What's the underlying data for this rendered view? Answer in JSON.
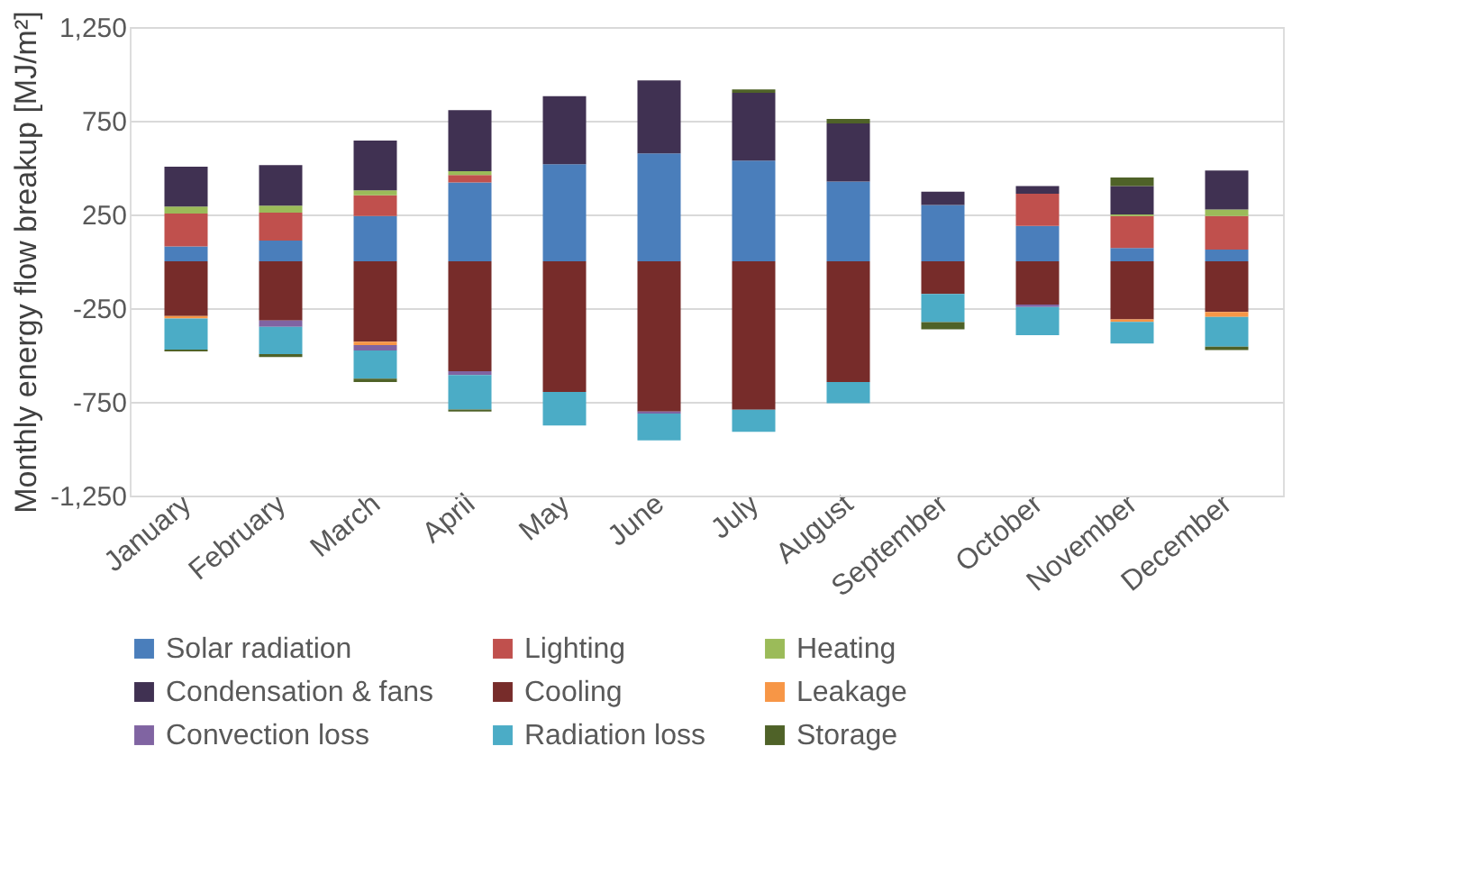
{
  "chart_data": {
    "type": "bar",
    "stacked": true,
    "ylabel": "Monthly energy flow breakup [MJ/m²]",
    "categories": [
      "January",
      "February",
      "March",
      "April",
      "May",
      "June",
      "July",
      "August",
      "September",
      "October",
      "November",
      "December"
    ],
    "series": [
      {
        "name": "Solar radiation",
        "color": "#4a7ebb",
        "values": [
          79,
          110,
          242,
          421,
          518,
          576,
          537,
          426,
          300,
          189,
          71,
          63
        ]
      },
      {
        "name": "Lighting",
        "color": "#c0504d",
        "values": [
          176,
          150,
          110,
          39,
          null,
          null,
          null,
          null,
          null,
          171,
          171,
          179
        ]
      },
      {
        "name": "Heating",
        "color": "#9bbb59",
        "values": [
          37,
          37,
          27,
          21,
          null,
          null,
          null,
          null,
          null,
          null,
          8,
          34
        ]
      },
      {
        "name": "Condensation & fans",
        "color": "#403152",
        "values": [
          213,
          216,
          265,
          326,
          363,
          389,
          362,
          310,
          71,
          42,
          152,
          208
        ]
      },
      {
        "name": "Cooling",
        "color": "#772c2a",
        "values": [
          -292,
          -316,
          -429,
          -586,
          -697,
          -802,
          -792,
          -644,
          -174,
          -231,
          -310,
          -271
        ]
      },
      {
        "name": "Leakage",
        "color": "#f79646",
        "values": [
          -13,
          null,
          -18,
          null,
          null,
          null,
          null,
          null,
          null,
          null,
          -13,
          -26
        ]
      },
      {
        "name": "Convection loss",
        "color": "#8064a2",
        "values": [
          null,
          -34,
          -29,
          -21,
          null,
          -11,
          null,
          null,
          null,
          -13,
          null,
          null
        ]
      },
      {
        "name": "Radiation loss",
        "color": "#4bacc6",
        "values": [
          -166,
          -145,
          -150,
          -184,
          -179,
          -142,
          -118,
          -113,
          -150,
          -150,
          -116,
          -158
        ]
      },
      {
        "name": "Storage",
        "color": "#4f6228",
        "values": [
          -10,
          -16,
          -18,
          -11,
          null,
          null,
          18,
          24,
          -39,
          null,
          45,
          -18
        ]
      }
    ],
    "ylim": [
      -1250,
      1250
    ],
    "yticks": [
      {
        "value": -1250,
        "label": "-1,250"
      },
      {
        "value": -750,
        "label": "-750"
      },
      {
        "value": -250,
        "label": "-250"
      },
      {
        "value": 250,
        "label": "250"
      },
      {
        "value": 750,
        "label": "750"
      },
      {
        "value": 1250,
        "label": "1,250"
      }
    ],
    "grid": "y",
    "legend": "bottom"
  }
}
